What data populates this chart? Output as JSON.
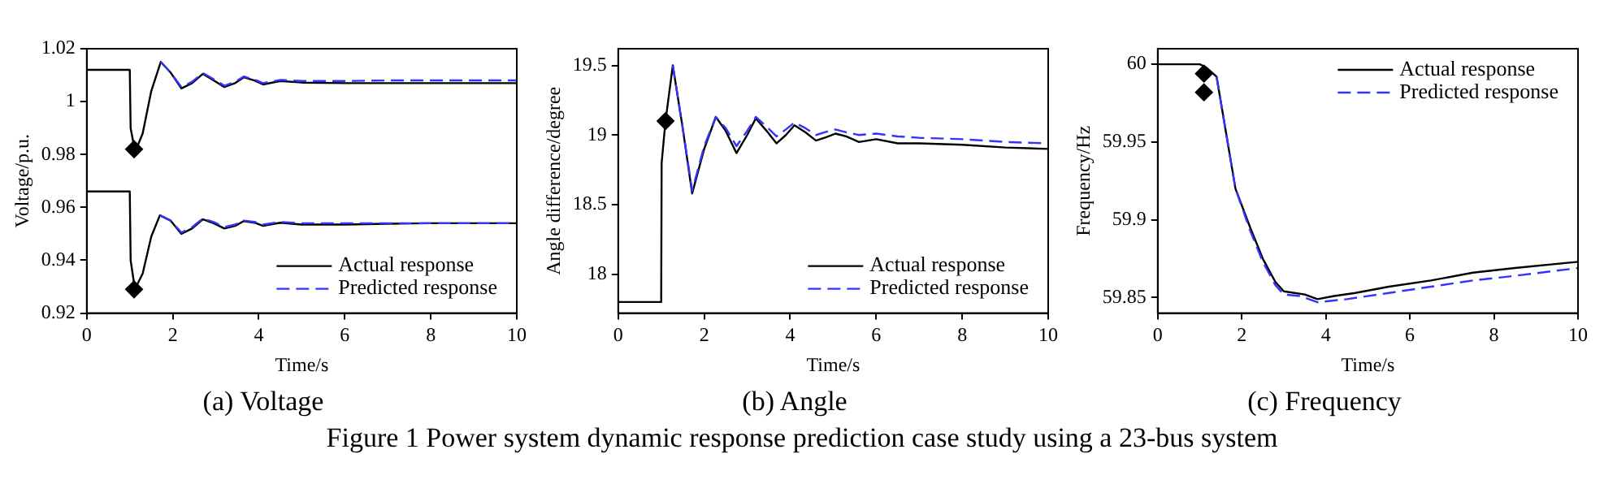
{
  "chart_data": [
    {
      "type": "line",
      "title": "(a) Voltage",
      "xlabel": "Time/s",
      "ylabel": "Voltage/p.u.",
      "xlim": [
        0,
        10
      ],
      "xticks": [
        0,
        2,
        4,
        6,
        8,
        10
      ],
      "ylim": [
        0.92,
        1.02
      ],
      "yticks": [
        0.92,
        0.94,
        0.96,
        0.98,
        1,
        1.02
      ],
      "grid": false,
      "legend": "bottom right",
      "series": [
        {
          "name": "Actual response",
          "color": "#000000",
          "line_style": "solid",
          "x": [
            0,
            1,
            1.02,
            1.1,
            1.15,
            1.3,
            1.5,
            1.72,
            1.95,
            2.2,
            2.45,
            2.7,
            2.95,
            3.2,
            3.45,
            3.65,
            3.9,
            4.1,
            4.5,
            5,
            6,
            7,
            8,
            9,
            10
          ],
          "values": [
            1.012,
            1.012,
            0.99,
            0.983,
            0.982,
            0.988,
            1.004,
            1.015,
            1.011,
            1.005,
            1.007,
            1.0105,
            1.008,
            1.0055,
            1.007,
            1.0092,
            1.008,
            1.0065,
            1.0078,
            1.0072,
            1.007,
            1.007,
            1.007,
            1.007,
            1.007
          ]
        },
        {
          "name": "Predicted response",
          "color": "#3333ff",
          "line_style": "dashed",
          "x": [
            1.72,
            1.95,
            2.2,
            2.45,
            2.7,
            2.95,
            3.2,
            3.45,
            3.65,
            3.9,
            4.1,
            4.5,
            5,
            6,
            7,
            8,
            9,
            10
          ],
          "values": [
            1.015,
            1.011,
            1.0055,
            1.0075,
            1.0108,
            1.0085,
            1.006,
            1.0075,
            1.0095,
            1.0083,
            1.007,
            1.0082,
            1.0078,
            1.0078,
            1.008,
            1.008,
            1.008,
            1.008
          ]
        },
        {
          "type": "line",
          "color": "#000000",
          "line_style": "solid",
          "x": [
            0,
            1,
            1.02,
            1.12,
            1.3,
            1.5,
            1.7,
            1.95,
            2.2,
            2.45,
            2.7,
            2.95,
            3.2,
            3.45,
            3.65,
            3.9,
            4.1,
            4.5,
            5,
            6,
            7,
            8,
            9,
            10
          ],
          "values": [
            0.966,
            0.966,
            0.94,
            0.929,
            0.935,
            0.949,
            0.957,
            0.955,
            0.95,
            0.952,
            0.9555,
            0.954,
            0.952,
            0.953,
            0.9548,
            0.9542,
            0.953,
            0.9542,
            0.9535,
            0.9535,
            0.9538,
            0.954,
            0.954,
            0.954
          ]
        },
        {
          "type": "line",
          "color": "#3333ff",
          "line_style": "dashed",
          "x": [
            1.7,
            1.95,
            2.2,
            2.45,
            2.7,
            2.95,
            3.2,
            3.45,
            3.65,
            3.9,
            4.1,
            4.5,
            5,
            6,
            7,
            8,
            9,
            10
          ],
          "values": [
            0.957,
            0.955,
            0.9505,
            0.9525,
            0.9558,
            0.9545,
            0.9525,
            0.9535,
            0.955,
            0.9545,
            0.9535,
            0.9545,
            0.954,
            0.954,
            0.954,
            0.954,
            0.954,
            0.954
          ]
        },
        {
          "type": "scatter",
          "color": "#000000",
          "marker": "diamond",
          "x": [
            1.1,
            1.1
          ],
          "values": [
            0.982,
            0.929
          ]
        }
      ]
    },
    {
      "type": "line",
      "title": "(b) Angle",
      "xlabel": "Time/s",
      "ylabel": "Angle difference/degree",
      "xlim": [
        0,
        10
      ],
      "xticks": [
        0,
        2,
        4,
        6,
        8,
        10
      ],
      "ylim": [
        17.72,
        19.62
      ],
      "yticks": [
        18,
        18.5,
        19,
        19.5
      ],
      "grid": false,
      "legend": "bottom right",
      "annotations": [
        "Figure 1 Power system dynamic response prediction case study using a 23-bus system"
      ],
      "series": [
        {
          "name": "Actual response",
          "color": "#000000",
          "line_style": "solid",
          "x": [
            0,
            1,
            1.01,
            1.1,
            1.27,
            1.5,
            1.72,
            2,
            2.27,
            2.5,
            2.75,
            3,
            3.2,
            3.45,
            3.68,
            3.9,
            4.1,
            4.35,
            4.6,
            4.8,
            5.05,
            5.3,
            5.6,
            6,
            6.5,
            7,
            8,
            9,
            10
          ],
          "values": [
            17.8,
            17.8,
            18.8,
            19.1,
            19.5,
            19.05,
            18.58,
            18.9,
            19.13,
            19.03,
            18.87,
            19.0,
            19.12,
            19.03,
            18.94,
            19.0,
            19.07,
            19.02,
            18.96,
            18.98,
            19.01,
            18.99,
            18.95,
            18.97,
            18.94,
            18.94,
            18.93,
            18.91,
            18.9
          ]
        },
        {
          "name": "Predicted response",
          "color": "#3333ff",
          "line_style": "dashed",
          "x": [
            1.27,
            1.5,
            1.72,
            2,
            2.27,
            2.5,
            2.75,
            3,
            3.2,
            3.45,
            3.68,
            3.9,
            4.1,
            4.35,
            4.6,
            4.8,
            5.05,
            5.3,
            5.6,
            6,
            6.5,
            7,
            8,
            9,
            10
          ],
          "values": [
            19.5,
            19.05,
            18.6,
            18.92,
            19.13,
            19.05,
            18.92,
            19.03,
            19.13,
            19.06,
            18.99,
            19.04,
            19.09,
            19.05,
            19.0,
            19.02,
            19.04,
            19.02,
            19.0,
            19.01,
            18.99,
            18.98,
            18.97,
            18.95,
            18.94
          ]
        },
        {
          "type": "scatter",
          "color": "#000000",
          "marker": "diamond",
          "x": [
            1.1
          ],
          "values": [
            19.1
          ]
        }
      ]
    },
    {
      "type": "line",
      "title": "(c) Frequency",
      "xlabel": "Time/s",
      "ylabel": "Frequency/Hz",
      "xlim": [
        0,
        10
      ],
      "xticks": [
        0,
        2,
        4,
        6,
        8,
        10
      ],
      "ylim": [
        59.84,
        60.01
      ],
      "yticks": [
        59.85,
        59.9,
        59.95,
        60
      ],
      "grid": false,
      "legend": "top right",
      "series": [
        {
          "name": "Actual response",
          "color": "#000000",
          "line_style": "solid",
          "x": [
            0,
            1,
            1.15,
            1.4,
            1.6,
            1.85,
            2.2,
            2.5,
            2.8,
            3,
            3.5,
            3.8,
            4.2,
            4.7,
            5.5,
            6.5,
            7.5,
            8.5,
            10
          ],
          "values": [
            60,
            60,
            59.998,
            59.992,
            59.96,
            59.92,
            59.895,
            59.875,
            59.86,
            59.854,
            59.852,
            59.849,
            59.851,
            59.853,
            59.857,
            59.861,
            59.866,
            59.869,
            59.873
          ]
        },
        {
          "name": "Predicted response",
          "color": "#3333ff",
          "line_style": "dashed",
          "x": [
            1.4,
            1.6,
            1.85,
            2.2,
            2.5,
            2.8,
            3,
            3.4,
            3.8,
            4.5,
            5.5,
            6.5,
            7.5,
            8.5,
            10
          ],
          "values": [
            59.992,
            59.96,
            59.92,
            59.893,
            59.873,
            59.858,
            59.852,
            59.851,
            59.847,
            59.849,
            59.853,
            59.857,
            59.861,
            59.864,
            59.869
          ]
        },
        {
          "type": "scatter",
          "color": "#000000",
          "marker": "diamond",
          "x": [
            1.1,
            1.1
          ],
          "values": [
            59.994,
            59.982
          ]
        }
      ]
    }
  ]
}
